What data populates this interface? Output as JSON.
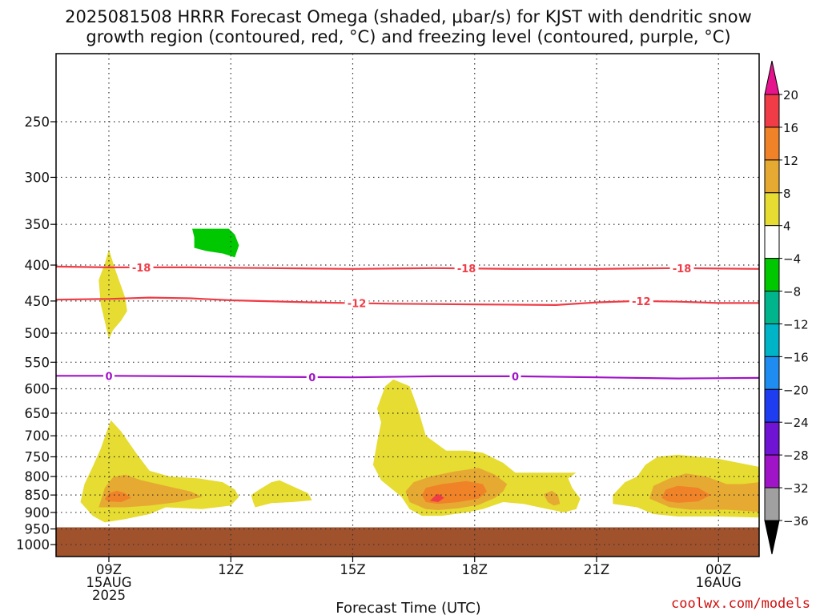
{
  "title_line1": "2025081508 HRRR Forecast Omega (shaded, μbar/s) for KJST with dendritic snow",
  "title_line2": "growth region (contoured, red, °C) and freezing level (contoured, purple, °C)",
  "credit": "coolwx.com/models",
  "chart_data": {
    "type": "heatmap",
    "title": "2025081508 HRRR Forecast Omega (shaded, μbar/s) for KJST with dendritic snow growth region (contoured, red, °C) and freezing level (contoured, purple, °C)",
    "xlabel": "Forecast Time (UTC)",
    "ylabel": "",
    "x_range_hours": [
      7.7,
      25.0
    ],
    "y_range_hPa": [
      1040,
      200
    ],
    "y_scale": "log",
    "grid": true,
    "x_ticks": [
      {
        "hour": 9,
        "lines": [
          "09Z",
          "15AUG",
          "2025"
        ]
      },
      {
        "hour": 12,
        "lines": [
          "12Z"
        ]
      },
      {
        "hour": 15,
        "lines": [
          "15Z"
        ]
      },
      {
        "hour": 18,
        "lines": [
          "18Z"
        ]
      },
      {
        "hour": 21,
        "lines": [
          "21Z"
        ]
      },
      {
        "hour": 24,
        "lines": [
          "00Z",
          "16AUG"
        ]
      }
    ],
    "y_ticks": [
      250,
      300,
      350,
      400,
      450,
      500,
      550,
      600,
      650,
      700,
      750,
      800,
      850,
      900,
      950,
      1000
    ],
    "surface_pressure_hPa": 945,
    "surface_color": "#a0522d",
    "colorbar": {
      "labels": [
        "20",
        "16",
        "12",
        "8",
        "4",
        "−4",
        "−8",
        "−12",
        "−16",
        "−20",
        "−24",
        "−28",
        "−32",
        "−36"
      ],
      "bins": [
        {
          "range": "16 to 20",
          "color": "#f03c46"
        },
        {
          "range": "12 to 16",
          "color": "#f08228"
        },
        {
          "range": "8 to 12",
          "color": "#e6aa32"
        },
        {
          "range": "4 to 8",
          "color": "#e6dc32"
        },
        {
          "range": "-4 to 4",
          "color": "#ffffff"
        },
        {
          "range": "-8 to -4",
          "color": "#00c800"
        },
        {
          "range": "-12 to -8",
          "color": "#00b48c"
        },
        {
          "range": "-16 to -12",
          "color": "#00b4c8"
        },
        {
          "range": "-20 to -16",
          "color": "#1e8cf0"
        },
        {
          "range": "-24 to -20",
          "color": "#1e3cf0"
        },
        {
          "range": "-28 to -24",
          "color": "#6e14d2"
        },
        {
          "range": "-32 to -28",
          "color": "#a014c8"
        },
        {
          "range": "-36 to -32",
          "color": "#a0a0a0"
        }
      ],
      "top_arrow_color": "#e6148c",
      "bottom_arrow_color": "#000000"
    },
    "contours": [
      {
        "name": "-18",
        "color": "#f03c46",
        "points": [
          [
            7.7,
            402
          ],
          [
            9,
            403
          ],
          [
            11,
            403
          ],
          [
            13,
            404
          ],
          [
            15,
            405
          ],
          [
            17,
            404
          ],
          [
            19,
            405
          ],
          [
            21,
            405
          ],
          [
            23,
            404
          ],
          [
            25,
            405
          ]
        ],
        "labels": [
          {
            "hour": 9.8,
            "text": "-18"
          },
          {
            "hour": 17.8,
            "text": "-18"
          },
          {
            "hour": 23.1,
            "text": "-18"
          }
        ]
      },
      {
        "name": "-12",
        "color": "#f03c46",
        "points": [
          [
            7.7,
            448
          ],
          [
            9,
            447
          ],
          [
            10,
            445
          ],
          [
            11,
            446
          ],
          [
            12,
            449
          ],
          [
            14,
            452
          ],
          [
            16,
            454
          ],
          [
            18,
            455
          ],
          [
            20,
            456
          ],
          [
            21,
            452
          ],
          [
            22,
            450
          ],
          [
            23,
            451
          ],
          [
            24,
            453
          ],
          [
            25,
            453
          ]
        ],
        "labels": [
          {
            "hour": 15.1,
            "text": "-12"
          },
          {
            "hour": 22.1,
            "text": "-12"
          }
        ]
      },
      {
        "name": "0",
        "color": "#a014c8",
        "points": [
          [
            7.7,
            575
          ],
          [
            9,
            575
          ],
          [
            11,
            576
          ],
          [
            13,
            577
          ],
          [
            15,
            578
          ],
          [
            17,
            576
          ],
          [
            19,
            576
          ],
          [
            21,
            578
          ],
          [
            23,
            580
          ],
          [
            25,
            579
          ]
        ],
        "labels": [
          {
            "hour": 9,
            "text": "0"
          },
          {
            "hour": 14,
            "text": "0"
          },
          {
            "hour": 19,
            "text": "0"
          }
        ]
      }
    ],
    "shaded_regions": [
      {
        "omega": "4 to 8",
        "color": "#e6dc32",
        "polygon": [
          [
            8.6,
            910
          ],
          [
            8.3,
            870
          ],
          [
            8.4,
            820
          ],
          [
            8.6,
            775
          ],
          [
            8.8,
            730
          ],
          [
            8.95,
            690
          ],
          [
            9.05,
            665
          ],
          [
            9.3,
            690
          ],
          [
            9.7,
            745
          ],
          [
            10,
            785
          ],
          [
            10.5,
            800
          ],
          [
            11.2,
            805
          ],
          [
            11.8,
            815
          ],
          [
            12.1,
            835
          ],
          [
            12.2,
            855
          ],
          [
            12,
            880
          ],
          [
            11.3,
            890
          ],
          [
            10.4,
            885
          ],
          [
            10,
            905
          ],
          [
            9.4,
            920
          ],
          [
            8.9,
            930
          ]
        ]
      },
      {
        "omega": "8 to 12",
        "color": "#e6aa32",
        "polygon": [
          [
            8.75,
            885
          ],
          [
            8.9,
            830
          ],
          [
            9.1,
            802
          ],
          [
            9.4,
            795
          ],
          [
            9.8,
            810
          ],
          [
            10.4,
            825
          ],
          [
            11,
            840
          ],
          [
            11.3,
            855
          ],
          [
            10.7,
            870
          ],
          [
            10,
            880
          ],
          [
            9.4,
            885
          ]
        ]
      },
      {
        "omega": "12 to 16",
        "color": "#f08228",
        "polygon": [
          [
            8.9,
            862
          ],
          [
            9,
            845
          ],
          [
            9.2,
            838
          ],
          [
            9.4,
            845
          ],
          [
            9.55,
            858
          ],
          [
            9.3,
            870
          ],
          [
            9,
            868
          ]
        ]
      },
      {
        "omega": "4 to 8",
        "color": "#e6dc32",
        "polygon": [
          [
            8.95,
            495
          ],
          [
            8.8,
            455
          ],
          [
            8.75,
            420
          ],
          [
            8.9,
            398
          ],
          [
            9,
            380
          ],
          [
            9.15,
            405
          ],
          [
            9.4,
            445
          ],
          [
            9.45,
            465
          ],
          [
            9.3,
            480
          ],
          [
            9.1,
            495
          ],
          [
            9,
            510
          ]
        ]
      },
      {
        "omega": "4 to 8",
        "color": "#e6dc32",
        "polygon": [
          [
            12.55,
            870
          ],
          [
            12.5,
            850
          ],
          [
            12.7,
            835
          ],
          [
            13,
            815
          ],
          [
            13.2,
            810
          ],
          [
            13.5,
            825
          ],
          [
            13.9,
            845
          ],
          [
            14.0,
            865
          ],
          [
            13.5,
            870
          ],
          [
            13,
            873
          ],
          [
            12.6,
            885
          ]
        ]
      },
      {
        "omega": "4 to 8",
        "color": "#e6dc32",
        "polygon": [
          [
            16.2,
            855
          ],
          [
            15.7,
            810
          ],
          [
            15.5,
            770
          ],
          [
            15.6,
            715
          ],
          [
            15.7,
            670
          ],
          [
            15.6,
            640
          ],
          [
            15.8,
            595
          ],
          [
            16,
            582
          ],
          [
            16.4,
            595
          ],
          [
            16.6,
            640
          ],
          [
            16.8,
            700
          ],
          [
            17.3,
            735
          ],
          [
            17.8,
            735
          ],
          [
            18.2,
            740
          ],
          [
            18.7,
            765
          ],
          [
            19,
            790
          ],
          [
            19.3,
            790
          ],
          [
            20,
            790
          ],
          [
            20.5,
            790
          ],
          [
            20.3,
            805
          ],
          [
            20.4,
            830
          ],
          [
            20.6,
            860
          ],
          [
            20.5,
            890
          ],
          [
            20.2,
            900
          ],
          [
            19.8,
            890
          ],
          [
            19.2,
            875
          ],
          [
            18.7,
            870
          ],
          [
            18.2,
            890
          ],
          [
            17.8,
            900
          ],
          [
            17.2,
            910
          ],
          [
            16.7,
            910
          ],
          [
            16.4,
            890
          ]
        ]
      },
      {
        "omega": "8 to 12",
        "color": "#e6aa32",
        "polygon": [
          [
            16.4,
            870
          ],
          [
            16.3,
            840
          ],
          [
            16.5,
            815
          ],
          [
            16.9,
            800
          ],
          [
            17.5,
            787
          ],
          [
            18.1,
            778
          ],
          [
            18.5,
            795
          ],
          [
            18.8,
            820
          ],
          [
            18.7,
            840
          ],
          [
            18.5,
            858
          ],
          [
            18.1,
            878
          ],
          [
            17.6,
            888
          ],
          [
            17.1,
            893
          ],
          [
            16.8,
            890
          ]
        ]
      },
      {
        "omega": "12 to 16",
        "color": "#f08228",
        "polygon": [
          [
            16.7,
            850
          ],
          [
            16.8,
            830
          ],
          [
            17.2,
            820
          ],
          [
            17.8,
            812
          ],
          [
            18.2,
            820
          ],
          [
            18.3,
            840
          ],
          [
            18.1,
            860
          ],
          [
            17.6,
            870
          ],
          [
            17.1,
            875
          ],
          [
            16.8,
            870
          ]
        ]
      },
      {
        "omega": "16 to 20",
        "color": "#f03c46",
        "polygon": [
          [
            16.9,
            866
          ],
          [
            17.0,
            855
          ],
          [
            17.1,
            847
          ],
          [
            17.25,
            858
          ],
          [
            17.1,
            870
          ]
        ]
      },
      {
        "omega": "8 to 12",
        "color": "#e6aa32",
        "polygon": [
          [
            19.8,
            870
          ],
          [
            19.7,
            848
          ],
          [
            19.9,
            838
          ],
          [
            20.05,
            850
          ],
          [
            20.1,
            875
          ],
          [
            19.95,
            880
          ]
        ]
      },
      {
        "omega": "4 to 8",
        "color": "#e6dc32",
        "polygon": [
          [
            25,
            915
          ],
          [
            24,
            912
          ],
          [
            23,
            912
          ],
          [
            22.4,
            905
          ],
          [
            22,
            885
          ],
          [
            21.4,
            875
          ],
          [
            21.4,
            850
          ],
          [
            21.7,
            815
          ],
          [
            22,
            800
          ],
          [
            22.2,
            770
          ],
          [
            22.5,
            750
          ],
          [
            23,
            745
          ],
          [
            23.5,
            750
          ],
          [
            24,
            755
          ],
          [
            24.5,
            765
          ],
          [
            25,
            775
          ]
        ]
      },
      {
        "omega": "8 to 12",
        "color": "#e6aa32",
        "polygon": [
          [
            25,
            898
          ],
          [
            24.2,
            892
          ],
          [
            23.3,
            892
          ],
          [
            22.8,
            885
          ],
          [
            22.3,
            860
          ],
          [
            22.4,
            825
          ],
          [
            22.8,
            805
          ],
          [
            23.2,
            792
          ],
          [
            23.7,
            800
          ],
          [
            24.2,
            820
          ],
          [
            24.6,
            820
          ],
          [
            25,
            815
          ]
        ]
      },
      {
        "omega": "12 to 16",
        "color": "#f08228",
        "polygon": [
          [
            22.6,
            858
          ],
          [
            22.7,
            835
          ],
          [
            23,
            825
          ],
          [
            23.5,
            830
          ],
          [
            23.8,
            850
          ],
          [
            23.5,
            868
          ],
          [
            23,
            872
          ],
          [
            22.75,
            868
          ]
        ]
      },
      {
        "omega": "-8 to -4",
        "color": "#00c800",
        "polygon": [
          [
            11.05,
            355
          ],
          [
            11.1,
            365
          ],
          [
            11.1,
            378
          ],
          [
            11.4,
            382
          ],
          [
            11.8,
            385
          ],
          [
            12.1,
            390
          ],
          [
            12.2,
            375
          ],
          [
            12.1,
            362
          ],
          [
            11.95,
            355
          ]
        ]
      }
    ]
  }
}
